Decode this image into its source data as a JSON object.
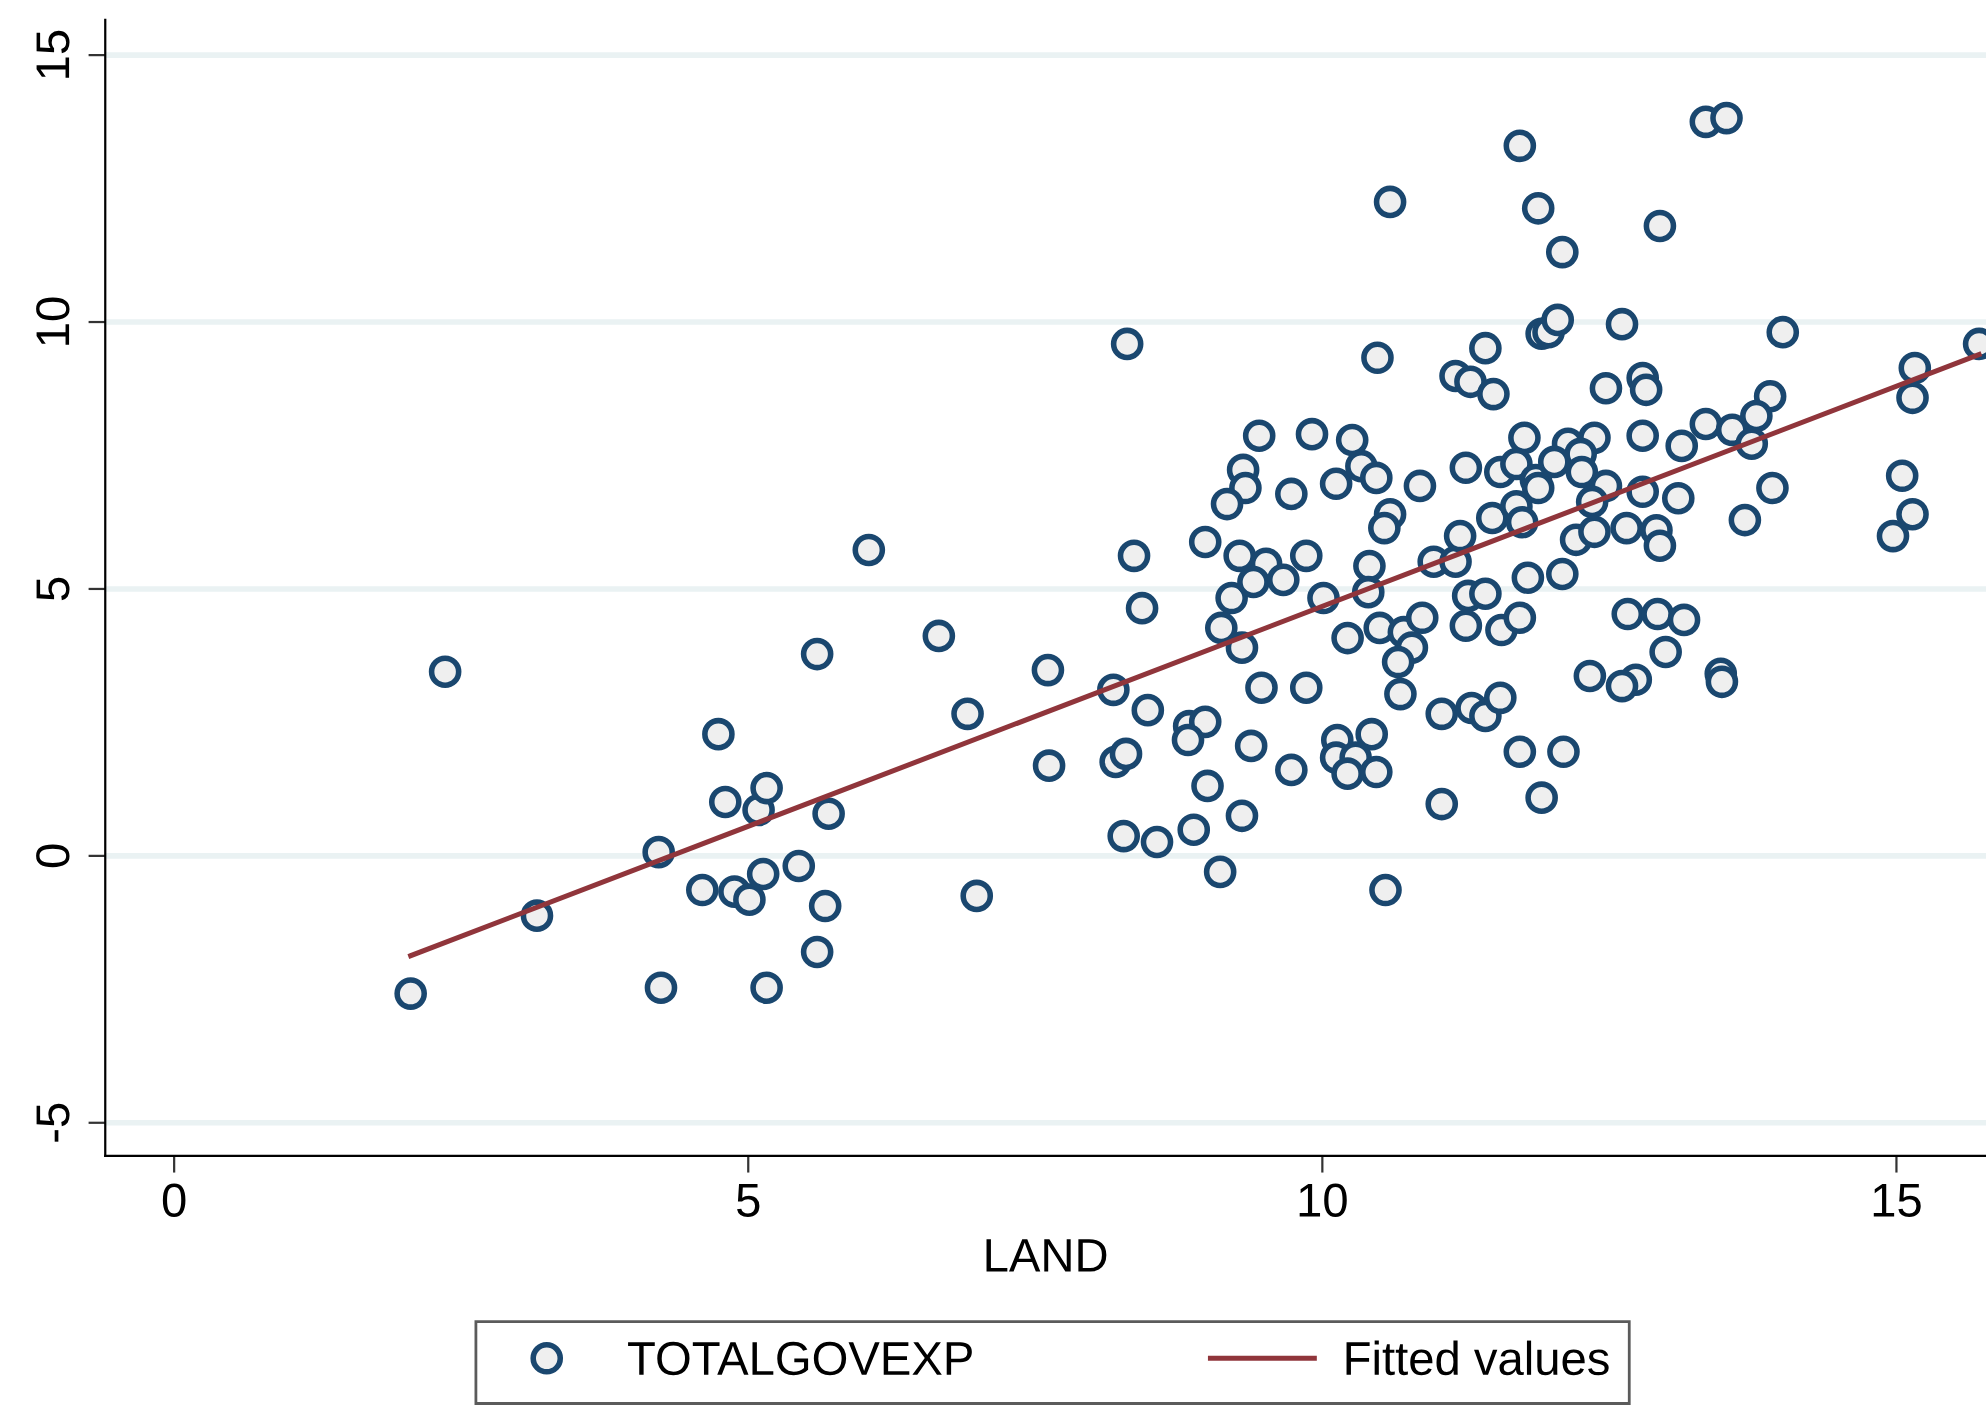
{
  "chart_data": {
    "type": "scatter",
    "xlabel": "LAND",
    "xlim": [
      -0.6,
      15.78
    ],
    "ylim": [
      -5.62,
      15.66
    ],
    "xticks": [
      0,
      5,
      10,
      15
    ],
    "yticks": [
      -5,
      0,
      5,
      10,
      15
    ],
    "grid": "y",
    "legend": "bottom",
    "series": [
      {
        "name": "TOTALGOVEXP",
        "marker": "circle",
        "color": "#1a476f",
        "x": [
          2.06,
          2.36,
          3.16,
          4.22,
          4.24,
          4.6,
          4.74,
          4.8,
          4.88,
          5.01,
          5.09,
          5.13,
          5.16,
          5.16,
          5.44,
          5.6,
          5.6,
          5.67,
          5.7,
          6.05,
          6.66,
          6.91,
          6.99,
          7.61,
          7.62,
          8.36,
          9.28,
          9.51,
          9.86,
          10.41,
          10.97,
          11.16,
          8.43,
          9.21,
          9.4,
          9.66,
          10.01,
          10.4,
          11.27,
          11.42,
          11.79,
          9.12,
          9.3,
          10.22,
          10.5,
          10.71,
          10.87,
          10.78,
          10.66,
          11.25,
          11.56,
          11.72,
          8.18,
          8.48,
          9.47,
          9.86,
          10.68,
          11.04,
          11.3,
          11.42,
          11.55,
          8.84,
          8.98,
          8.83,
          9.38,
          10.13,
          10.12,
          10.29,
          10.43,
          10.22,
          10.47,
          8.2,
          8.29,
          9.73,
          11.72,
          11.91,
          9.0,
          9.3,
          8.88,
          8.27,
          8.56,
          11.04,
          9.11,
          10.55,
          11.72,
          10.59,
          11.88,
          8.3,
          10.48,
          11.42,
          11.16,
          11.29,
          11.49,
          11.91,
          9.45,
          9.91,
          10.26,
          11.76,
          9.31,
          9.33,
          9.17,
          9.73,
          10.12,
          10.34,
          10.47,
          10.85,
          11.25,
          11.55,
          11.69,
          11.86,
          11.88,
          10.59,
          10.54,
          11.2,
          11.48,
          11.69,
          11.74,
          8.98,
          13.34,
          13.52,
          12.94,
          12.09,
          11.97,
          12.05,
          12.61,
          14.01,
          15.72,
          12.47,
          12.79,
          12.82,
          15.16,
          15.14,
          13.9,
          13.78,
          13.34,
          13.57,
          13.74,
          13.13,
          12.79,
          12.37,
          12.14,
          12.25,
          12.02,
          12.26,
          12.47,
          12.79,
          12.35,
          13.1,
          13.92,
          15.05,
          15.14,
          14.97,
          13.68,
          12.65,
          12.91,
          12.94,
          12.21,
          12.37,
          12.09,
          12.66,
          12.92,
          13.15,
          12.99,
          12.33,
          12.73,
          12.61,
          13.47,
          13.48,
          12.1
        ],
        "values": [
          -2.58,
          3.45,
          -1.12,
          0.07,
          -2.47,
          -0.64,
          2.28,
          1.01,
          -0.67,
          -0.82,
          0.86,
          -0.34,
          1.27,
          -2.47,
          -0.19,
          -1.8,
          3.78,
          -0.94,
          0.79,
          5.73,
          4.12,
          2.66,
          -0.75,
          3.48,
          1.69,
          5.62,
          5.62,
          5.47,
          5.62,
          5.43,
          5.51,
          5.51,
          4.64,
          4.83,
          5.13,
          5.17,
          4.83,
          4.94,
          4.87,
          4.91,
          5.21,
          4.27,
          3.9,
          4.08,
          4.27,
          4.19,
          4.46,
          3.9,
          3.63,
          4.31,
          4.23,
          4.46,
          3.11,
          2.73,
          3.15,
          3.15,
          3.03,
          2.66,
          2.77,
          2.62,
          2.96,
          2.43,
          2.51,
          2.17,
          2.06,
          2.17,
          1.84,
          1.84,
          2.28,
          1.54,
          1.57,
          1.76,
          1.91,
          1.61,
          1.95,
          1.09,
          1.31,
          0.75,
          0.49,
          0.37,
          0.26,
          0.97,
          -0.3,
          -0.64,
          13.3,
          12.25,
          12.13,
          9.59,
          9.33,
          9.51,
          8.99,
          8.88,
          8.65,
          9.78,
          7.87,
          7.9,
          7.79,
          7.83,
          7.23,
          6.89,
          6.59,
          6.78,
          6.97,
          7.3,
          7.08,
          6.93,
          7.27,
          7.19,
          7.34,
          7.04,
          6.89,
          6.4,
          6.14,
          5.99,
          6.33,
          6.55,
          6.25,
          5.88,
          13.75,
          13.82,
          11.8,
          11.31,
          9.81,
          10.04,
          9.96,
          9.81,
          9.59,
          8.76,
          8.95,
          8.73,
          9.14,
          8.58,
          8.61,
          8.24,
          8.09,
          7.98,
          7.72,
          7.68,
          7.87,
          7.83,
          7.72,
          7.53,
          7.38,
          7.19,
          6.93,
          6.82,
          6.63,
          6.7,
          6.89,
          7.12,
          6.4,
          5.99,
          6.29,
          6.14,
          6.1,
          5.81,
          5.92,
          6.07,
          5.28,
          4.53,
          4.53,
          4.42,
          3.82,
          3.37,
          3.3,
          3.18,
          3.41,
          3.26,
          1.95
        ]
      },
      {
        "name": "Fitted values",
        "type": "line",
        "color": "#90353b",
        "x": [
          2.06,
          15.72
        ],
        "values": [
          -1.87,
          9.39
        ]
      }
    ]
  }
}
